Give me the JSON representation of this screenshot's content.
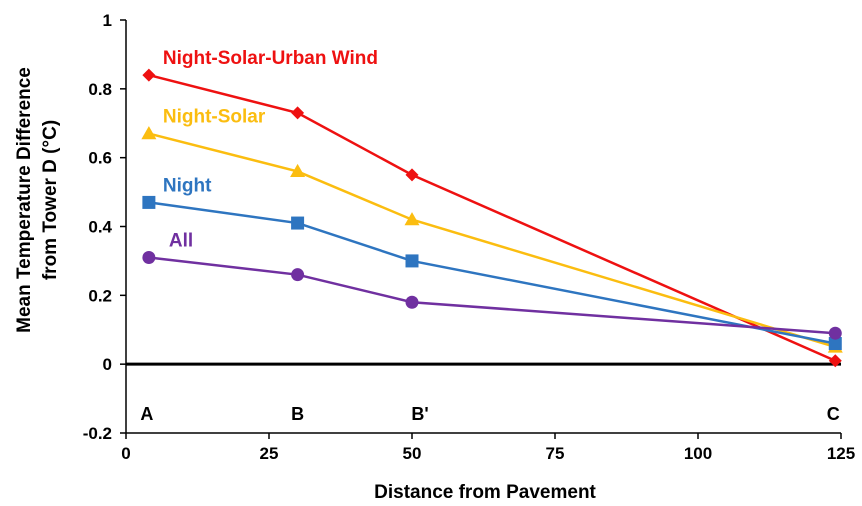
{
  "chart_data": {
    "type": "line",
    "title": "",
    "xlabel": "Distance from Pavement",
    "ylabel_lines": [
      "Mean Temperature Difference",
      "from Tower D (°C)"
    ],
    "xlim": [
      0,
      125
    ],
    "ylim": [
      -0.2,
      1
    ],
    "x_ticks": [
      0,
      25,
      50,
      75,
      100,
      125
    ],
    "y_ticks": [
      -0.2,
      0,
      0.2,
      0.4,
      0.6,
      0.8,
      1
    ],
    "y_tick_labels": [
      "-0.2",
      "0",
      "0.2",
      "0.4",
      "0.6",
      "0.8",
      "1"
    ],
    "x": [
      4,
      30,
      50,
      124
    ],
    "point_labels": [
      "A",
      "B",
      "B'",
      "C"
    ],
    "grid": false,
    "series": [
      {
        "name": "Night-Solar-Urban Wind",
        "color": "#ee1111",
        "marker": "diamond",
        "values": [
          0.84,
          0.73,
          0.55,
          0.01
        ]
      },
      {
        "name": "Night-Solar",
        "color": "#fbbd10",
        "marker": "triangle",
        "values": [
          0.67,
          0.56,
          0.42,
          0.05
        ]
      },
      {
        "name": "Night",
        "color": "#2e75c0",
        "marker": "square",
        "values": [
          0.47,
          0.41,
          0.3,
          0.06
        ]
      },
      {
        "name": "All",
        "color": "#7030a0",
        "marker": "circle",
        "values": [
          0.31,
          0.26,
          0.18,
          0.09
        ]
      }
    ]
  }
}
